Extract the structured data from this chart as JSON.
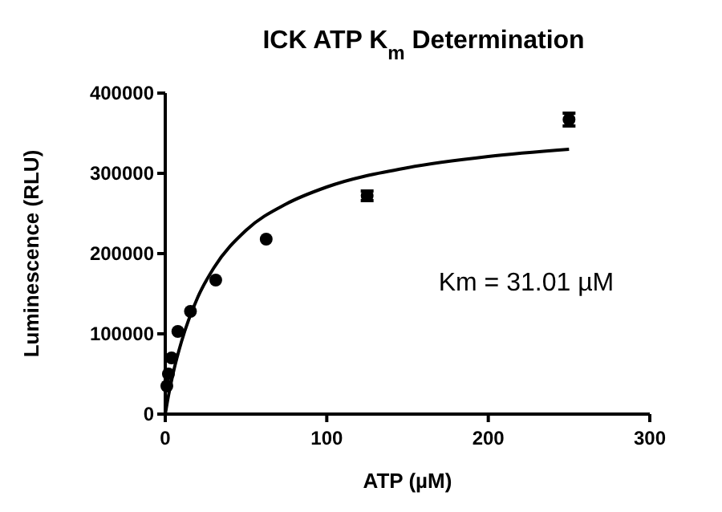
{
  "chart_data": {
    "type": "scatter",
    "title": "ICK ATP K$_{m}$ Determination",
    "xlabel": "ATP (µM)",
    "ylabel": "Luminescence (RLU)",
    "xlim": [
      0,
      300
    ],
    "xticks": [
      0,
      100,
      200,
      300
    ],
    "ylim": [
      0,
      400000
    ],
    "yticks": [
      0,
      100000,
      200000,
      300000,
      400000
    ],
    "grid": false,
    "marker": "circle",
    "series": [
      {
        "color": "#000000",
        "x": [
          0.98,
          1.95,
          3.9,
          7.8,
          15.6,
          31.25,
          62.5,
          125,
          250
        ],
        "values": [
          35000,
          50000,
          70000,
          103000,
          128000,
          167000,
          218000,
          272000,
          367000
        ],
        "errors": [
          null,
          null,
          null,
          null,
          null,
          null,
          null,
          6000,
          8000
        ]
      },
      {
        "type": "line",
        "color": "#000000",
        "marker": "none",
        "x": [
          0,
          2,
          5,
          10,
          20,
          30,
          50,
          75,
          100,
          150,
          200,
          250
        ],
        "values": [
          0,
          23000,
          52000,
          90000,
          145000,
          182000,
          229000,
          262000,
          283000,
          307000,
          321000,
          330000
        ]
      }
    ],
    "annotations": [
      "Km = 31.01 µM"
    ]
  }
}
